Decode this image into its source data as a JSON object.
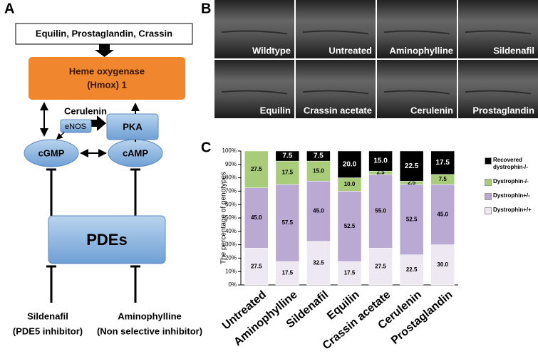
{
  "panel_labels": [
    "A",
    "B",
    "C"
  ],
  "diagram": {
    "inducers": "Equilin, Prostaglandin, Crassin",
    "hmox": [
      "Heme oxygenase",
      "(Hmox) 1"
    ],
    "cerulenin": "Cerulenin",
    "pka": "PKA",
    "enos": "eNOS",
    "cgmp": "cGMP",
    "camp": "cAMP",
    "pdes": "PDEs",
    "sildenafil": [
      "Sildenafil",
      "(PDE5 inhibitor)"
    ],
    "aminophylline": [
      "Aminophylline",
      "(Non selective inhibitor)"
    ]
  },
  "images": {
    "labels": [
      "Wildtype",
      "Untreated",
      "Aminophylline",
      "Sildenafil",
      "Equilin",
      "Crassin acetate",
      "Cerulenin",
      "Prostaglandin"
    ]
  },
  "chart_data": {
    "type": "stacked-bar",
    "y_label": "The percentage of genotypes",
    "categories": [
      "Untreated",
      "Aminophylline",
      "Sildenafil",
      "Equilin",
      "Crassin acetate",
      "Cerulenin",
      "Prostaglandin"
    ],
    "series": [
      {
        "name": "Dystrophin+/+",
        "color": "#ede8f1",
        "values": [
          27.5,
          17.5,
          32.5,
          17.5,
          27.5,
          22.5,
          30.0
        ],
        "value_labels": [
          "27.5",
          "17.5",
          "32.5",
          "17.5",
          "27.5",
          "22.5",
          "30.0"
        ]
      },
      {
        "name": "Dystrophin+/-",
        "color": "#baa9d3",
        "values": [
          45.0,
          57.5,
          45.0,
          52.5,
          55.0,
          52.5,
          45.0
        ],
        "value_labels": [
          "45.0",
          "57.5",
          "45.0",
          "52.5",
          "55.0",
          "52.5",
          "45.0"
        ]
      },
      {
        "name": "Dystrophin-/-",
        "color": "#a9cc7b",
        "values": [
          27.5,
          17.5,
          15.0,
          10.0,
          2.5,
          2.5,
          7.5
        ],
        "value_labels": [
          "27.5",
          "17.5",
          "15.0",
          "10.0",
          "2.5",
          "2.5",
          "7.5"
        ]
      },
      {
        "name": "Recovered dystrophin-/-",
        "color": "#000000",
        "values": [
          null,
          7.5,
          7.5,
          20.0,
          15.0,
          22.5,
          17.5
        ],
        "value_labels": [
          null,
          "7.5",
          "7.5",
          "20.0",
          "15.0",
          "22.5",
          "17.5"
        ]
      }
    ],
    "ylim": [
      0,
      100
    ],
    "yticks": [
      {
        "value": 0,
        "label": "0%"
      },
      {
        "value": 10,
        "label": "10%"
      },
      {
        "value": 20,
        "label": "20%"
      },
      {
        "value": 30,
        "label": "30%"
      },
      {
        "value": 40,
        "label": "40%"
      },
      {
        "value": 50,
        "label": "50%"
      },
      {
        "value": 60,
        "label": "60%"
      },
      {
        "value": 70,
        "label": "70%"
      },
      {
        "value": 80,
        "label": "80%"
      },
      {
        "value": 90,
        "label": "90%"
      },
      {
        "value": 100,
        "label": "100%"
      }
    ]
  }
}
